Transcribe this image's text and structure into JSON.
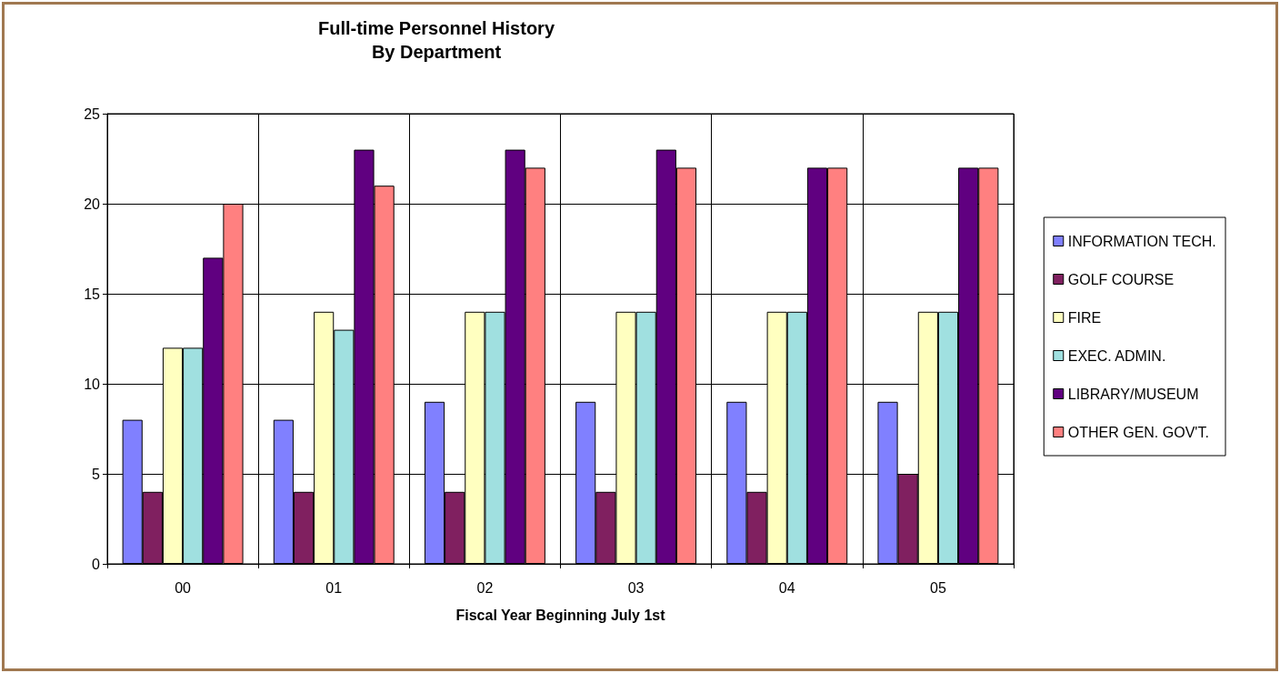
{
  "chart_data": {
    "type": "bar",
    "title": "Full-time Personnel History\nBy Department",
    "xlabel": "Fiscal Year Beginning July 1st",
    "categories": [
      "00",
      "01",
      "02",
      "03",
      "04",
      "05"
    ],
    "series": [
      {
        "name": "INFORMATION TECH.",
        "color": "#8080ff",
        "values": [
          8,
          8,
          9,
          9,
          9,
          9
        ]
      },
      {
        "name": "GOLF COURSE",
        "color": "#802060",
        "values": [
          4,
          4,
          4,
          4,
          4,
          5
        ]
      },
      {
        "name": "FIRE",
        "color": "#ffffc0",
        "values": [
          12,
          14,
          14,
          14,
          14,
          14
        ]
      },
      {
        "name": "EXEC. ADMIN.",
        "color": "#a0e0e0",
        "values": [
          12,
          13,
          14,
          14,
          14,
          14
        ]
      },
      {
        "name": "LIBRARY/MUSEUM",
        "color": "#600080",
        "values": [
          17,
          23,
          23,
          23,
          22,
          22
        ]
      },
      {
        "name": "OTHER GEN. GOV'T.",
        "color": "#ff8080",
        "values": [
          20,
          21,
          22,
          22,
          22,
          22
        ]
      }
    ],
    "ylim": [
      0,
      25
    ],
    "yticks": [
      0,
      5,
      10,
      15,
      20,
      25
    ],
    "grid": true,
    "legend": "right"
  }
}
